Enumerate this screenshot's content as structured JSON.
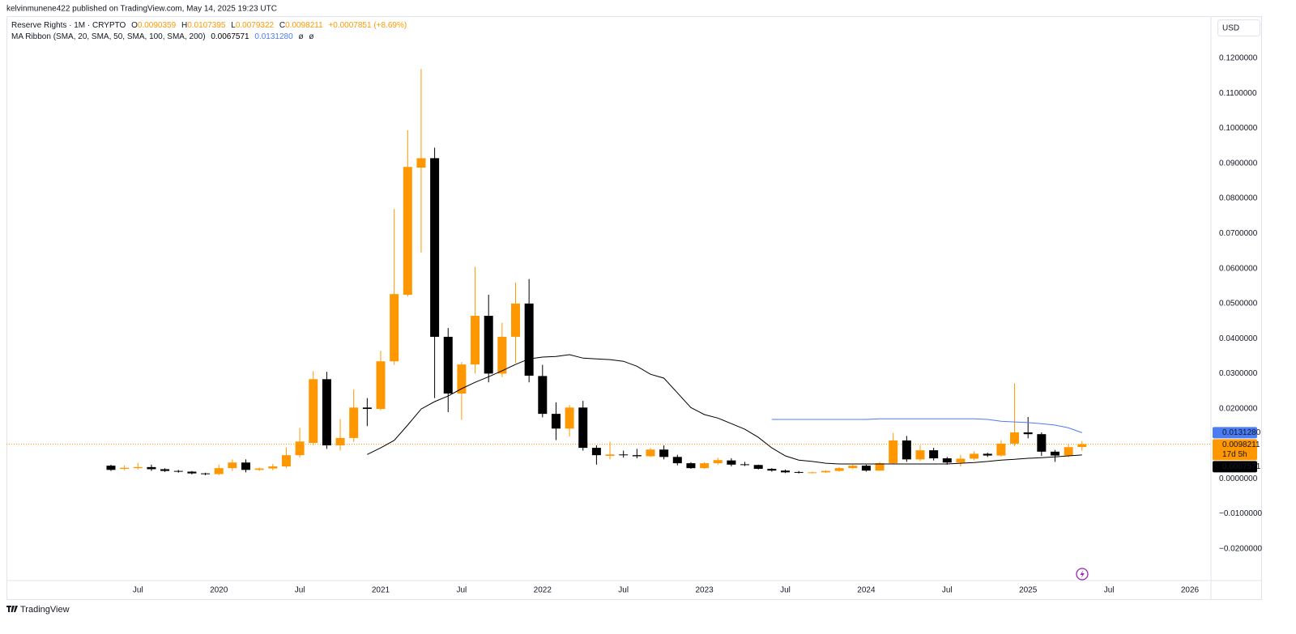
{
  "published": "kelvinmunene422 published on TradingView.com, May 14, 2025 19:23 UTC",
  "brand": "TradingView",
  "currency": "USD",
  "chart_data": {
    "type": "candlestick",
    "title": "Reserve Rights · 1M · CRYPTO",
    "ohlc_labels": [
      "O",
      "H",
      "L",
      "C"
    ],
    "change": "+0.0007851 (+8.69%)",
    "countdown": "17d 5h",
    "indicator": "MA Ribbon (SMA, 20, SMA, 50, SMA, 100, SMA, 200)",
    "empty_marks": [
      "ø",
      "ø"
    ],
    "up_color": "#ff9800",
    "down_color": "#000000",
    "categories": [
      "2019-05",
      "2019-06",
      "2019-07",
      "2019-08",
      "2019-09",
      "2019-10",
      "2019-11",
      "2019-12",
      "2020-01",
      "2020-02",
      "2020-03",
      "2020-04",
      "2020-05",
      "2020-06",
      "2020-07",
      "2020-08",
      "2020-09",
      "2020-10",
      "2020-11",
      "2020-12",
      "2021-01",
      "2021-02",
      "2021-03",
      "2021-04",
      "2021-05",
      "2021-06",
      "2021-07",
      "2021-08",
      "2021-09",
      "2021-10",
      "2021-11",
      "2021-12",
      "2022-01",
      "2022-02",
      "2022-03",
      "2022-04",
      "2022-05",
      "2022-06",
      "2022-07",
      "2022-08",
      "2022-09",
      "2022-10",
      "2022-11",
      "2022-12",
      "2023-01",
      "2023-02",
      "2023-03",
      "2023-04",
      "2023-05",
      "2023-06",
      "2023-07",
      "2023-08",
      "2023-09",
      "2023-10",
      "2023-11",
      "2023-12",
      "2024-01",
      "2024-02",
      "2024-03",
      "2024-04",
      "2024-05",
      "2024-06",
      "2024-07",
      "2024-08",
      "2024-09",
      "2024-10",
      "2024-11",
      "2024-12",
      "2025-01",
      "2025-02",
      "2025-03",
      "2025-04",
      "2025-05"
    ],
    "open": [
      0.0037,
      0.0028,
      0.003,
      0.0033,
      0.0027,
      0.0022,
      0.002,
      0.0015,
      0.0013,
      0.003,
      0.0046,
      0.0025,
      0.0029,
      0.0035,
      0.0067,
      0.0102,
      0.0284,
      0.0095,
      0.0116,
      0.0203,
      0.0199,
      0.0335,
      0.0525,
      0.0888,
      0.0915,
      0.0405,
      0.0243,
      0.0326,
      0.0465,
      0.03,
      0.0405,
      0.05,
      0.0293,
      0.0185,
      0.0143,
      0.0203,
      0.0088,
      0.0065,
      0.0069,
      0.0067,
      0.0064,
      0.0083,
      0.0062,
      0.0044,
      0.003,
      0.0044,
      0.0052,
      0.0041,
      0.0039,
      0.0028,
      0.0023,
      0.0019,
      0.0017,
      0.0018,
      0.0022,
      0.003,
      0.0037,
      0.0023,
      0.0044,
      0.0109,
      0.0055,
      0.0081,
      0.0058,
      0.0046,
      0.0057,
      0.0071,
      0.0066,
      0.01,
      0.0132,
      0.0127,
      0.0077,
      0.0066,
      0.0090359
    ],
    "high": [
      0.004,
      0.0038,
      0.0045,
      0.004,
      0.003,
      0.0025,
      0.0022,
      0.0017,
      0.004,
      0.0055,
      0.0055,
      0.0032,
      0.0042,
      0.0089,
      0.0145,
      0.0307,
      0.0305,
      0.017,
      0.0255,
      0.023,
      0.0365,
      0.077,
      0.0995,
      0.117,
      0.0945,
      0.043,
      0.0333,
      0.0605,
      0.0525,
      0.0445,
      0.056,
      0.057,
      0.0325,
      0.0218,
      0.021,
      0.0222,
      0.0095,
      0.0105,
      0.008,
      0.0085,
      0.0088,
      0.0095,
      0.0068,
      0.0047,
      0.0047,
      0.006,
      0.0058,
      0.0048,
      0.004,
      0.003,
      0.0026,
      0.0022,
      0.002,
      0.0024,
      0.0033,
      0.004,
      0.004,
      0.0048,
      0.013,
      0.0122,
      0.0095,
      0.0088,
      0.0062,
      0.0068,
      0.0078,
      0.0074,
      0.011,
      0.0272,
      0.0176,
      0.0132,
      0.0082,
      0.0098,
      0.0107395
    ],
    "low": [
      0.0022,
      0.0024,
      0.0026,
      0.0022,
      0.0019,
      0.0017,
      0.0012,
      0.001,
      0.001,
      0.0022,
      0.0018,
      0.0022,
      0.0024,
      0.003,
      0.006,
      0.0095,
      0.0085,
      0.008,
      0.0105,
      0.015,
      0.0195,
      0.0325,
      0.052,
      0.0645,
      0.023,
      0.019,
      0.0168,
      0.03,
      0.0275,
      0.029,
      0.033,
      0.0275,
      0.0175,
      0.011,
      0.012,
      0.008,
      0.004,
      0.0055,
      0.006,
      0.0058,
      0.0062,
      0.0055,
      0.0038,
      0.0028,
      0.0028,
      0.004,
      0.0035,
      0.0036,
      0.0026,
      0.002,
      0.0016,
      0.0015,
      0.0015,
      0.0016,
      0.002,
      0.0027,
      0.002,
      0.0022,
      0.0043,
      0.0048,
      0.005,
      0.0052,
      0.004,
      0.0035,
      0.0052,
      0.0062,
      0.0063,
      0.0093,
      0.0115,
      0.0065,
      0.0048,
      0.0061,
      0.0079322
    ],
    "close": [
      0.0025,
      0.0031,
      0.0033,
      0.0027,
      0.0022,
      0.002,
      0.0015,
      0.0013,
      0.003,
      0.0046,
      0.0025,
      0.0029,
      0.0035,
      0.0067,
      0.0106,
      0.0284,
      0.0095,
      0.0116,
      0.0203,
      0.0199,
      0.0335,
      0.0527,
      0.089,
      0.0915,
      0.0405,
      0.0243,
      0.0326,
      0.0465,
      0.03,
      0.0405,
      0.05,
      0.0294,
      0.0185,
      0.0143,
      0.0203,
      0.0088,
      0.0067,
      0.0069,
      0.0067,
      0.0064,
      0.0083,
      0.0062,
      0.0044,
      0.003,
      0.0044,
      0.0053,
      0.004,
      0.0039,
      0.0028,
      0.0023,
      0.0018,
      0.0017,
      0.0018,
      0.0022,
      0.003,
      0.0037,
      0.0023,
      0.0044,
      0.0109,
      0.0055,
      0.0081,
      0.0058,
      0.0046,
      0.0057,
      0.0071,
      0.0066,
      0.01,
      0.0132,
      0.0127,
      0.0077,
      0.0066,
      0.009,
      0.0098211
    ],
    "series": [
      {
        "color": "#000000",
        "values": [
          null,
          null,
          null,
          null,
          null,
          null,
          null,
          null,
          null,
          null,
          null,
          null,
          null,
          null,
          null,
          null,
          null,
          null,
          null,
          0.0069,
          0.0088,
          0.0109,
          0.0153,
          0.0199,
          0.022,
          0.0236,
          0.0257,
          0.0275,
          0.0291,
          0.0308,
          0.0326,
          0.0342,
          0.0347,
          0.0349,
          0.0354,
          0.0344,
          0.0342,
          0.034,
          0.0335,
          0.0321,
          0.0298,
          0.0287,
          0.0245,
          0.0203,
          0.0183,
          0.0173,
          0.0157,
          0.0141,
          0.0118,
          0.0088,
          0.0065,
          0.0053,
          0.0049,
          0.0044,
          0.0042,
          0.0042,
          0.0042,
          0.0042,
          0.0042,
          0.0042,
          0.0042,
          0.0042,
          0.0042,
          0.0044,
          0.0046,
          0.0049,
          0.0053,
          0.0055,
          0.0058,
          0.006,
          0.0062,
          0.0065,
          0.0067571
        ]
      },
      {
        "color": "#4c7cf3",
        "values": [
          null,
          null,
          null,
          null,
          null,
          null,
          null,
          null,
          null,
          null,
          null,
          null,
          null,
          null,
          null,
          null,
          null,
          null,
          null,
          null,
          null,
          null,
          null,
          null,
          null,
          null,
          null,
          null,
          null,
          null,
          null,
          null,
          null,
          null,
          null,
          null,
          null,
          null,
          null,
          null,
          null,
          null,
          null,
          null,
          null,
          null,
          null,
          null,
          null,
          0.0169,
          0.0169,
          0.0169,
          0.0169,
          0.0169,
          0.0169,
          0.0169,
          0.0169,
          0.0171,
          0.0171,
          0.0171,
          0.0171,
          0.0171,
          0.0171,
          0.0171,
          0.0171,
          0.0169,
          0.0164,
          0.0162,
          0.016,
          0.0157,
          0.0153,
          0.0145,
          0.013128
        ],
        "value_labels": [
          null,
          null,
          null,
          null,
          null,
          null,
          null,
          null,
          null,
          null,
          null,
          null,
          null,
          null,
          null,
          null,
          null,
          null,
          null,
          null,
          null,
          null,
          null,
          null,
          null,
          null,
          null,
          null,
          null,
          null,
          null,
          null,
          null,
          null,
          null,
          null,
          null,
          null,
          null,
          null,
          null,
          null,
          null,
          null,
          null,
          null,
          null,
          null,
          null,
          null,
          null,
          null,
          null,
          null,
          null,
          null,
          null,
          null,
          null,
          null,
          null,
          null,
          null,
          null,
          null,
          null,
          null,
          null,
          null,
          null,
          null,
          null,
          "0.0131280"
        ]
      }
    ],
    "ylim": [
      -0.0291,
      0.1332
    ],
    "yticks": [
      {
        "value": 0.12,
        "label": "0.1200000"
      },
      {
        "value": 0.11,
        "label": "0.1100000"
      },
      {
        "value": 0.1,
        "label": "0.1000000"
      },
      {
        "value": 0.09,
        "label": "0.0900000"
      },
      {
        "value": 0.08,
        "label": "0.0800000"
      },
      {
        "value": 0.07,
        "label": "0.0700000"
      },
      {
        "value": 0.06,
        "label": "0.0600000"
      },
      {
        "value": 0.05,
        "label": "0.0500000"
      },
      {
        "value": 0.04,
        "label": "0.0400000"
      },
      {
        "value": 0.03,
        "label": "0.0300000"
      },
      {
        "value": 0.02,
        "label": "0.0200000"
      },
      {
        "value": 0.01,
        "label": "0.0100000"
      },
      {
        "value": 0,
        "label": "0.0000000"
      },
      {
        "value": -0.01,
        "label": "−0.0100000"
      },
      {
        "value": -0.02,
        "label": "−0.0200000"
      }
    ],
    "xticks": [
      {
        "value": "2019-07",
        "label": "Jul"
      },
      {
        "value": "2020-01",
        "label": "2020"
      },
      {
        "value": "2020-07",
        "label": "Jul"
      },
      {
        "value": "2021-01",
        "label": "2021"
      },
      {
        "value": "2021-07",
        "label": "Jul"
      },
      {
        "value": "2022-01",
        "label": "2022"
      },
      {
        "value": "2022-07",
        "label": "Jul"
      },
      {
        "value": "2023-01",
        "label": "2023"
      },
      {
        "value": "2023-07",
        "label": "Jul"
      },
      {
        "value": "2024-01",
        "label": "2024"
      },
      {
        "value": "2024-07",
        "label": "Jul"
      },
      {
        "value": "2025-01",
        "label": "2025"
      },
      {
        "value": "2025-07",
        "label": "Jul"
      },
      {
        "value": "2026-01",
        "label": "2026"
      }
    ]
  }
}
